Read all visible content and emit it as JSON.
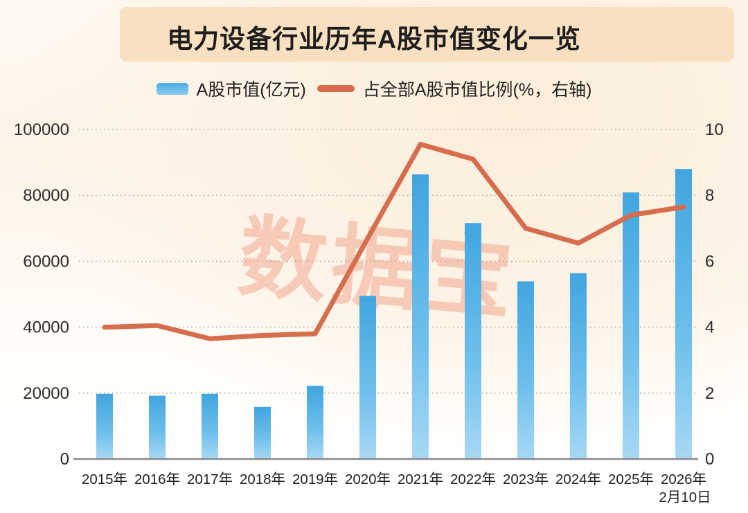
{
  "title": "电力设备行业历年A股市值变化一览",
  "colors": {
    "bar_top": "#41a5df",
    "bar_bottom": "#a8d8f5",
    "line": "#d66d4c",
    "title_band_bg": "#f9e0c0",
    "watermark": "#ec9176",
    "grid": "#ababab",
    "axis_line": "#8a8a8a",
    "tick_text": "#2b2b2b"
  },
  "chart_data": {
    "type": "bar",
    "title": "电力设备行业历年A股市值变化一览",
    "categories": [
      "2015年",
      "2016年",
      "2017年",
      "2018年",
      "2019年",
      "2020年",
      "2021年",
      "2022年",
      "2023年",
      "2024年",
      "2025年",
      "2026年"
    ],
    "category_note": {
      "index": 11,
      "text": "2月10日"
    },
    "series": [
      {
        "name": "A股市值(亿元)",
        "type": "bar",
        "axis": "left",
        "values": [
          19800,
          19200,
          19800,
          15800,
          22200,
          49500,
          86400,
          71600,
          53900,
          56400,
          80900,
          88000
        ]
      },
      {
        "name": "占全部A股市值比例(%，右轴)",
        "type": "line",
        "axis": "right",
        "values": [
          4.0,
          4.05,
          3.65,
          3.75,
          3.8,
          6.7,
          9.55,
          9.1,
          7.0,
          6.55,
          7.4,
          7.65
        ]
      }
    ],
    "left_axis": {
      "range": [
        0,
        100000
      ],
      "ticks": [
        0,
        20000,
        40000,
        60000,
        80000,
        100000
      ]
    },
    "right_axis": {
      "range": [
        0,
        10
      ],
      "ticks": [
        0,
        2,
        4,
        6,
        8,
        10
      ]
    },
    "grid": "horizontal-dotted",
    "legend_position": "top",
    "watermark": "数据宝"
  }
}
